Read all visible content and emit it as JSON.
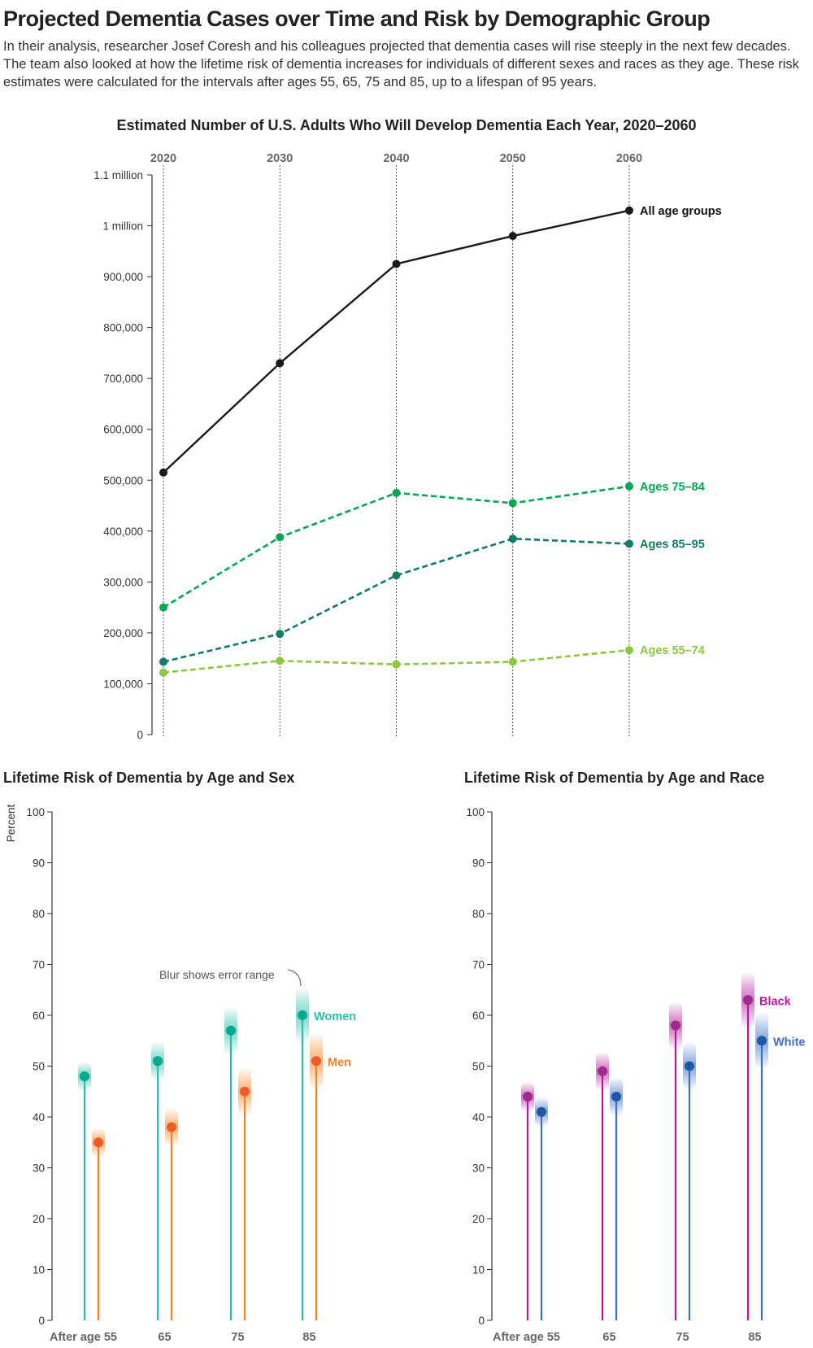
{
  "title": "Projected Dementia Cases over Time and Risk by Demographic Group",
  "description": "In their analysis, researcher Josef Coresh and his colleagues projected that dementia cases will rise steeply in the next few decades. The team also looked at how the lifetime risk of dementia increases for individuals of different sexes and races as they age. These risk estimates were calculated for the intervals after ages 55, 65, 75 and 85, up to a lifespan of 95 years.",
  "chart_data": [
    {
      "type": "line",
      "title": "Estimated Number of U.S. Adults Who Will Develop Dementia Each Year, 2020–2060",
      "x": [
        "2020",
        "2030",
        "2040",
        "2050",
        "2060"
      ],
      "ylim": [
        0,
        1100000
      ],
      "yticks": [
        "0",
        "100,000",
        "200,000",
        "300,000",
        "400,000",
        "500,000",
        "600,000",
        "700,000",
        "800,000",
        "900,000",
        "1 million",
        "1.1 million"
      ],
      "grid": "vertical dotted",
      "series": [
        {
          "name": "All age groups",
          "values": [
            515000,
            730000,
            925000,
            980000,
            1030000
          ],
          "color": "#1a1a1a",
          "dashed": false
        },
        {
          "name": "Ages 75–84",
          "values": [
            250000,
            388000,
            475000,
            455000,
            488000
          ],
          "color": "#00a651",
          "dashed": true
        },
        {
          "name": "Ages 85–95",
          "values": [
            143000,
            198000,
            313000,
            385000,
            375000
          ],
          "color": "#127a68",
          "dashed": true
        },
        {
          "name": "Ages 55–74",
          "values": [
            122000,
            145000,
            138000,
            143000,
            166000
          ],
          "color": "#8dc63f",
          "dashed": true
        }
      ]
    },
    {
      "type": "scatter",
      "title": "Lifetime Risk of Dementia by Age and Sex",
      "ylabel": "Percent",
      "ylim": [
        0,
        100
      ],
      "yticks": [
        "0",
        "10",
        "20",
        "30",
        "40",
        "50",
        "60",
        "70",
        "80",
        "90",
        "100"
      ],
      "categories": [
        "After age 55",
        "65",
        "75",
        "85"
      ],
      "annotation": "Blur shows error range",
      "series": [
        {
          "name": "Women",
          "values": [
            48,
            51,
            57,
            60
          ],
          "color": "#2bbfa9",
          "dot": "#00a98f"
        },
        {
          "name": "Men",
          "values": [
            35,
            38,
            45,
            51
          ],
          "color": "#f58220",
          "dot": "#f05a28"
        }
      ]
    },
    {
      "type": "scatter",
      "title": "Lifetime Risk of Dementia by Age and Race",
      "ylim": [
        0,
        100
      ],
      "yticks": [
        "0",
        "10",
        "20",
        "30",
        "40",
        "50",
        "60",
        "70",
        "80",
        "90",
        "100"
      ],
      "categories": [
        "After age 55",
        "65",
        "75",
        "85"
      ],
      "series": [
        {
          "name": "Black",
          "values": [
            44,
            49,
            58,
            63
          ],
          "color": "#b5179e",
          "dot": "#9c2a8f"
        },
        {
          "name": "White",
          "values": [
            41,
            44,
            50,
            55
          ],
          "color": "#3b6fc4",
          "dot": "#1f57a8"
        }
      ]
    }
  ]
}
